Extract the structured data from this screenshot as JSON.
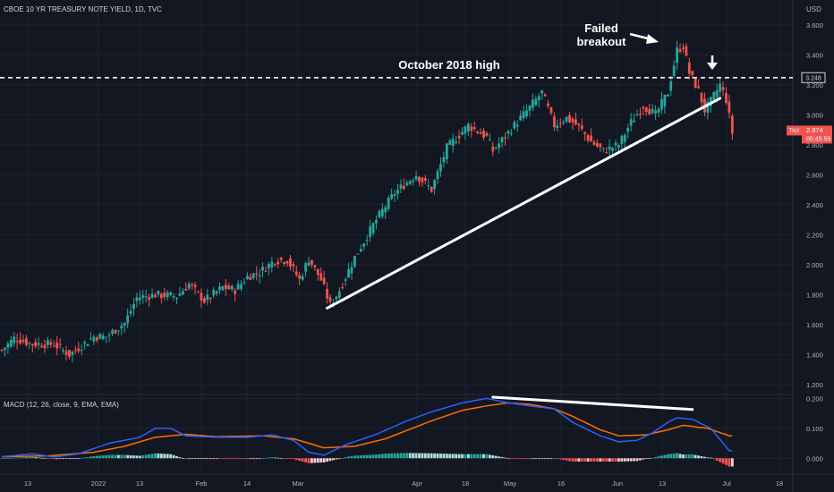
{
  "header": {
    "symbol_title": "CBOE 10 YR TREASURY NOTE YIELD, 1D, TVC",
    "currency": "USD"
  },
  "price_pane": {
    "y_ticks": [
      "3.600",
      "3.400",
      "3.200",
      "3.000",
      "2.800",
      "2.600",
      "2.400",
      "2.200",
      "2.000",
      "1.800",
      "1.600",
      "1.400",
      "1.200"
    ],
    "ylim": [
      1.14,
      3.73
    ],
    "level_label": "3.248",
    "last_price_label": "2.874",
    "last_price_symbol": "TNX",
    "countdown": "05:45:59"
  },
  "annotations": {
    "failed_breakout_line1": "Failed",
    "failed_breakout_line2": "breakout",
    "october_high": "October 2018 high"
  },
  "macd_pane": {
    "title": "MACD (12, 26, close, 9, EMA, EMA)",
    "y_ticks": [
      "0.200",
      "0.100",
      "0.000"
    ],
    "ylim": [
      -0.05,
      0.21
    ]
  },
  "x_axis": {
    "labels": [
      "13",
      "2022",
      "13",
      "Feb",
      "14",
      "Mar",
      "Apr",
      "18",
      "May",
      "16",
      "Jun",
      "13",
      "Jul",
      "18"
    ]
  },
  "colors": {
    "background": "#131722",
    "up": "#26a69a",
    "down": "#ef5350",
    "macd_line": "#2962ff",
    "signal_line": "#ff6d00",
    "hist_up_strong": "#26a69a",
    "hist_up_weak": "#b2dfdb",
    "hist_down_strong": "#ff5252",
    "hist_down_weak": "#ffcdd2"
  },
  "chart_data": {
    "type": "candlestick",
    "title": "CBOE 10 YR TREASURY NOTE YIELD, 1D, TVC",
    "price_path": [
      [
        0,
        1.43
      ],
      [
        4,
        1.51
      ],
      [
        10,
        1.47
      ],
      [
        17,
        1.47
      ],
      [
        22,
        1.4
      ],
      [
        30,
        1.52
      ],
      [
        34,
        1.52
      ],
      [
        40,
        1.61
      ],
      [
        44,
        1.78
      ],
      [
        50,
        1.8
      ],
      [
        57,
        1.79
      ],
      [
        61,
        1.87
      ],
      [
        66,
        1.76
      ],
      [
        72,
        1.85
      ],
      [
        76,
        1.83
      ],
      [
        80,
        1.92
      ],
      [
        84,
        1.95
      ],
      [
        89,
        2.03
      ],
      [
        93,
        2.03
      ],
      [
        97,
        1.9
      ],
      [
        100,
        2.04
      ],
      [
        104,
        1.9
      ],
      [
        107,
        1.73
      ],
      [
        110,
        1.83
      ],
      [
        115,
        2.05
      ],
      [
        122,
        2.3
      ],
      [
        128,
        2.48
      ],
      [
        135,
        2.6
      ],
      [
        140,
        2.5
      ],
      [
        145,
        2.78
      ],
      [
        152,
        2.93
      ],
      [
        158,
        2.85
      ],
      [
        160,
        2.76
      ],
      [
        167,
        2.93
      ],
      [
        172,
        3.05
      ],
      [
        176,
        3.15
      ],
      [
        180,
        2.93
      ],
      [
        184,
        2.98
      ],
      [
        188,
        2.92
      ],
      [
        192,
        2.82
      ],
      [
        196,
        2.76
      ],
      [
        201,
        2.8
      ],
      [
        205,
        2.95
      ],
      [
        209,
        3.06
      ],
      [
        213,
        3.0
      ],
      [
        217,
        3.15
      ],
      [
        220,
        3.43
      ],
      [
        222,
        3.46
      ],
      [
        224,
        3.28
      ],
      [
        227,
        3.16
      ],
      [
        229,
        3.03
      ],
      [
        231,
        3.09
      ],
      [
        234,
        3.2
      ],
      [
        236,
        3.1
      ],
      [
        238,
        2.88
      ]
    ],
    "ylim": [
      1.14,
      3.73
    ],
    "horizontal_level": 3.248,
    "horizontal_level_label": "October 2018 high",
    "trendline": {
      "from": [
        106,
        1.71
      ],
      "to": [
        234,
        3.11
      ]
    },
    "last_price": 2.874,
    "macd": {
      "title": "MACD (12, 26, close, 9, EMA, EMA)",
      "params": [
        12,
        26,
        9
      ],
      "ylim": [
        -0.05,
        0.21
      ],
      "divergence_line": {
        "from": [
          160,
          0.204
        ],
        "to": [
          225,
          0.163
        ]
      },
      "macd_path": [
        [
          0,
          0.005
        ],
        [
          10,
          0.015
        ],
        [
          17,
          0.004
        ],
        [
          25,
          0.015
        ],
        [
          35,
          0.05
        ],
        [
          45,
          0.07
        ],
        [
          50,
          0.1
        ],
        [
          55,
          0.1
        ],
        [
          60,
          0.075
        ],
        [
          70,
          0.07
        ],
        [
          80,
          0.07
        ],
        [
          88,
          0.078
        ],
        [
          95,
          0.06
        ],
        [
          100,
          0.02
        ],
        [
          105,
          0.01
        ],
        [
          112,
          0.045
        ],
        [
          122,
          0.08
        ],
        [
          132,
          0.125
        ],
        [
          140,
          0.155
        ],
        [
          150,
          0.185
        ],
        [
          158,
          0.2
        ],
        [
          165,
          0.185
        ],
        [
          172,
          0.175
        ],
        [
          180,
          0.165
        ],
        [
          186,
          0.12
        ],
        [
          195,
          0.075
        ],
        [
          201,
          0.055
        ],
        [
          207,
          0.06
        ],
        [
          212,
          0.085
        ],
        [
          217,
          0.12
        ],
        [
          220,
          0.135
        ],
        [
          225,
          0.13
        ],
        [
          231,
          0.1
        ],
        [
          237,
          0.025
        ]
      ],
      "signal_path": [
        [
          0,
          0.005
        ],
        [
          15,
          0.008
        ],
        [
          30,
          0.02
        ],
        [
          40,
          0.04
        ],
        [
          50,
          0.07
        ],
        [
          60,
          0.08
        ],
        [
          70,
          0.072
        ],
        [
          85,
          0.075
        ],
        [
          95,
          0.065
        ],
        [
          105,
          0.035
        ],
        [
          115,
          0.04
        ],
        [
          125,
          0.065
        ],
        [
          140,
          0.125
        ],
        [
          150,
          0.16
        ],
        [
          158,
          0.175
        ],
        [
          165,
          0.185
        ],
        [
          172,
          0.18
        ],
        [
          180,
          0.165
        ],
        [
          186,
          0.14
        ],
        [
          195,
          0.095
        ],
        [
          201,
          0.075
        ],
        [
          210,
          0.078
        ],
        [
          217,
          0.095
        ],
        [
          222,
          0.11
        ],
        [
          230,
          0.1
        ],
        [
          237,
          0.075
        ]
      ]
    }
  }
}
